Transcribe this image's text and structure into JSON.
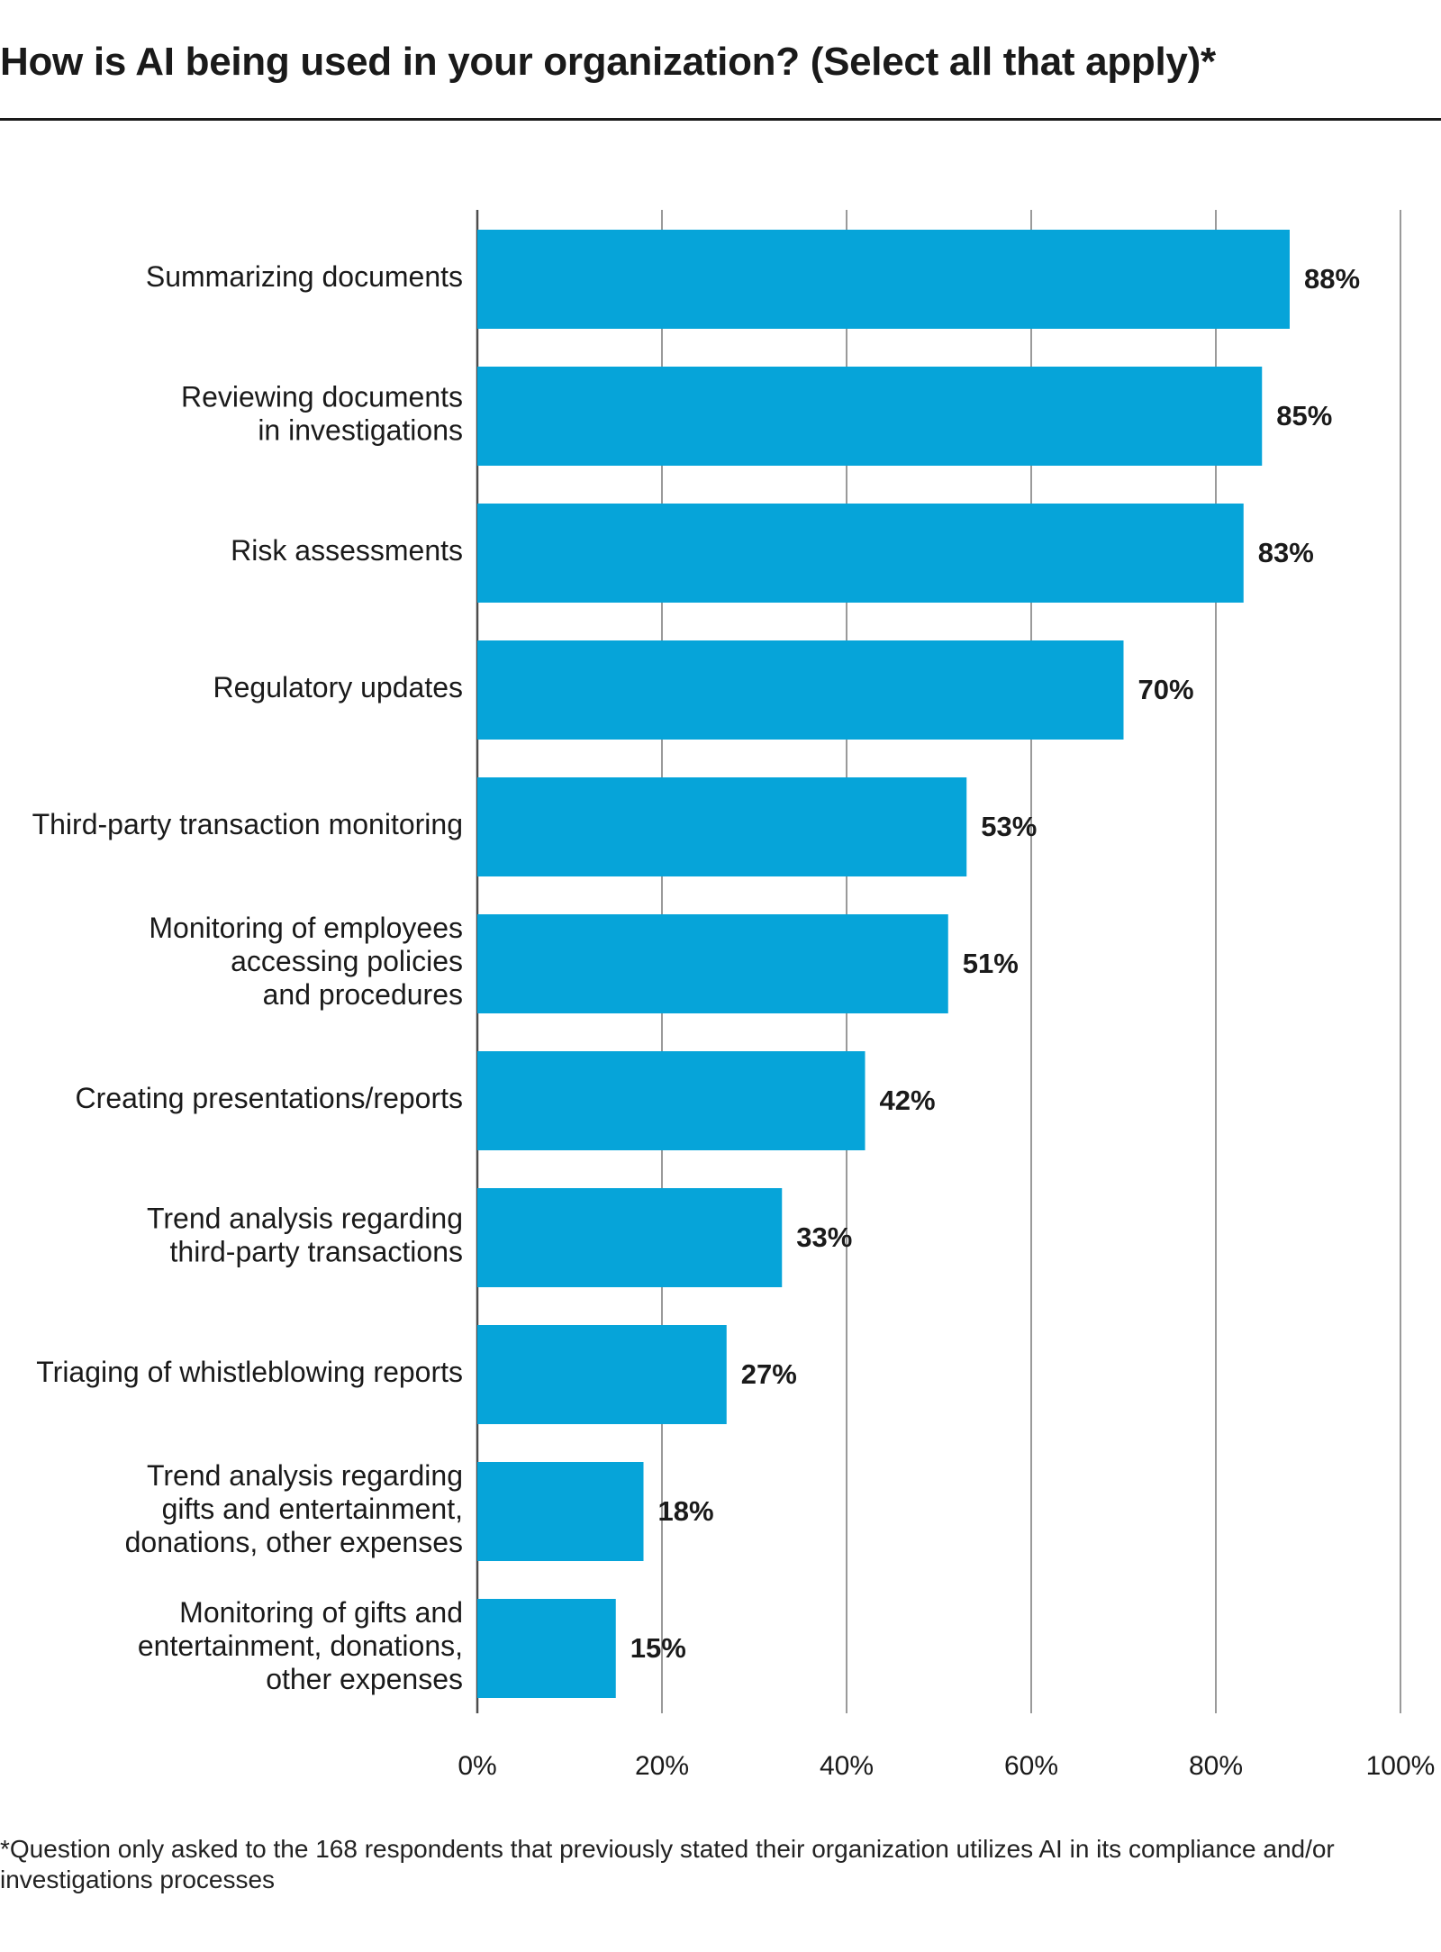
{
  "chart_data": {
    "type": "bar",
    "orientation": "horizontal",
    "title": "How is AI being used in your organization? (Select all that apply)*",
    "categories": [
      [
        "Summarizing documents"
      ],
      [
        "Reviewing documents",
        "in investigations"
      ],
      [
        "Risk assessments"
      ],
      [
        "Regulatory updates"
      ],
      [
        "Third-party transaction monitoring"
      ],
      [
        "Monitoring of employees",
        "accessing policies",
        "and procedures"
      ],
      [
        "Creating presentations/reports"
      ],
      [
        "Trend analysis regarding",
        "third-party transactions"
      ],
      [
        "Triaging of whistleblowing reports"
      ],
      [
        "Trend analysis regarding",
        "gifts and entertainment,",
        "donations, other expenses"
      ],
      [
        "Monitoring of gifts and",
        "entertainment, donations,",
        "other expenses"
      ]
    ],
    "values": [
      88,
      85,
      83,
      70,
      53,
      51,
      42,
      33,
      27,
      18,
      15
    ],
    "value_labels": [
      "88%",
      "85%",
      "83%",
      "70%",
      "53%",
      "51%",
      "42%",
      "33%",
      "27%",
      "18%",
      "15%"
    ],
    "xlim": [
      0,
      100
    ],
    "x_ticks": [
      0,
      20,
      40,
      60,
      80,
      100
    ],
    "x_tick_labels": [
      "0%",
      "20%",
      "40%",
      "60%",
      "80%",
      "100%"
    ],
    "grid": true,
    "bar_color": "#06A4D9",
    "grid_color": "#9a9a9a",
    "axis_color": "#4d4d4d"
  },
  "footnote": "*Question only asked to the 168 respondents that previously stated their organization utilizes AI in its compliance and/or investigations processes"
}
